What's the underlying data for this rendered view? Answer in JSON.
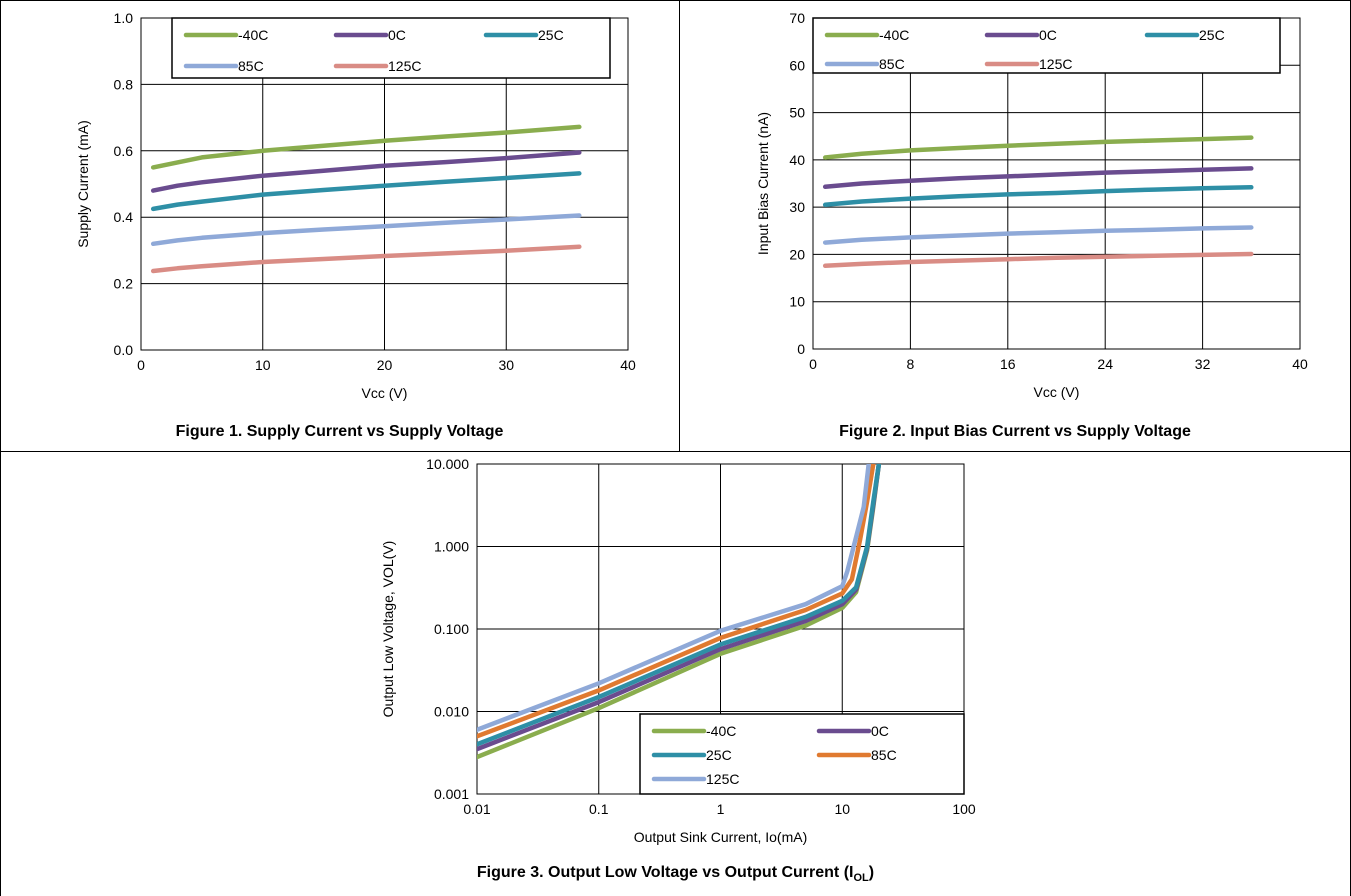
{
  "colors": {
    "minus40": "#8AAD4E",
    "zero": "#6A4C8F",
    "c25": "#2E8FA6",
    "c85": "#8FA9D8",
    "c125": "#D98C85",
    "f3_c85": "#E07A30"
  },
  "figures": [
    {
      "caption": "Figure 1. Supply Current vs Supply Voltage",
      "chart_data": {
        "type": "line",
        "xlabel": "Vcc (V)",
        "ylabel": "Supply Current (mA)",
        "xlim": [
          0,
          40
        ],
        "ylim": [
          0,
          1.0
        ],
        "xticks": [
          "0",
          "10",
          "20",
          "30",
          "40"
        ],
        "yticks": [
          "0.0",
          "0.2",
          "0.4",
          "0.6",
          "0.8",
          "1.0"
        ],
        "legend": "top",
        "grid": true,
        "series": [
          {
            "name": "-40C",
            "color": "#8AAD4E",
            "x": [
              1,
              3,
              5,
              10,
              15,
              20,
              25,
              30,
              36
            ],
            "y": [
              0.55,
              0.565,
              0.58,
              0.6,
              0.615,
              0.63,
              0.643,
              0.655,
              0.672
            ]
          },
          {
            "name": "0C",
            "color": "#6A4C8F",
            "x": [
              1,
              3,
              5,
              10,
              15,
              20,
              25,
              30,
              36
            ],
            "y": [
              0.48,
              0.495,
              0.505,
              0.525,
              0.54,
              0.555,
              0.566,
              0.578,
              0.595
            ]
          },
          {
            "name": "25C",
            "color": "#2E8FA6",
            "x": [
              1,
              3,
              5,
              10,
              15,
              20,
              25,
              30,
              36
            ],
            "y": [
              0.425,
              0.438,
              0.447,
              0.468,
              0.482,
              0.495,
              0.507,
              0.518,
              0.532
            ]
          },
          {
            "name": "85C",
            "color": "#8FA9D8",
            "x": [
              1,
              3,
              5,
              10,
              15,
              20,
              25,
              30,
              36
            ],
            "y": [
              0.32,
              0.33,
              0.338,
              0.352,
              0.363,
              0.373,
              0.383,
              0.393,
              0.405
            ]
          },
          {
            "name": "125C",
            "color": "#D98C85",
            "x": [
              1,
              3,
              5,
              10,
              15,
              20,
              25,
              30,
              36
            ],
            "y": [
              0.238,
              0.246,
              0.252,
              0.265,
              0.274,
              0.283,
              0.291,
              0.299,
              0.311
            ]
          }
        ]
      }
    },
    {
      "caption": "Figure 2. Input Bias Current vs Supply Voltage",
      "chart_data": {
        "type": "line",
        "xlabel": "Vcc (V)",
        "ylabel": "Input Bias Current (nA)",
        "xlim": [
          0,
          40
        ],
        "ylim": [
          0,
          70
        ],
        "xticks": [
          "0",
          "8",
          "16",
          "24",
          "32",
          "40"
        ],
        "yticks": [
          "0",
          "10",
          "20",
          "30",
          "40",
          "50",
          "60",
          "70"
        ],
        "legend": "top",
        "grid": true,
        "series": [
          {
            "name": "-40C",
            "color": "#8AAD4E",
            "x": [
              1,
              4,
              8,
              12,
              16,
              20,
              24,
              28,
              32,
              36
            ],
            "y": [
              40.5,
              41.3,
              42.0,
              42.5,
              43.0,
              43.4,
              43.8,
              44.1,
              44.4,
              44.7
            ]
          },
          {
            "name": "0C",
            "color": "#6A4C8F",
            "x": [
              1,
              4,
              8,
              12,
              16,
              20,
              24,
              28,
              32,
              36
            ],
            "y": [
              34.3,
              35.0,
              35.6,
              36.1,
              36.5,
              36.9,
              37.3,
              37.6,
              37.9,
              38.2
            ]
          },
          {
            "name": "25C",
            "color": "#2E8FA6",
            "x": [
              1,
              4,
              8,
              12,
              16,
              20,
              24,
              28,
              32,
              36
            ],
            "y": [
              30.5,
              31.2,
              31.8,
              32.3,
              32.7,
              33.0,
              33.4,
              33.7,
              34.0,
              34.2
            ]
          },
          {
            "name": "85C",
            "color": "#8FA9D8",
            "x": [
              1,
              4,
              8,
              12,
              16,
              20,
              24,
              28,
              32,
              36
            ],
            "y": [
              22.5,
              23.1,
              23.6,
              24.0,
              24.4,
              24.7,
              25.0,
              25.2,
              25.5,
              25.7
            ]
          },
          {
            "name": "125C",
            "color": "#D98C85",
            "x": [
              1,
              4,
              8,
              12,
              16,
              20,
              24,
              28,
              32,
              36
            ],
            "y": [
              17.6,
              18.0,
              18.4,
              18.7,
              19.0,
              19.3,
              19.5,
              19.7,
              19.9,
              20.1
            ]
          }
        ]
      }
    },
    {
      "caption": "Figure 3. Output Low Voltage vs Output Current (I",
      "caption_sub": "OL",
      "caption_end": ")",
      "chart_data": {
        "type": "line",
        "xlabel": "Output Sink Current, Io(mA)",
        "ylabel": "Output Low Voltage, VOL(V)",
        "xscale": "log",
        "yscale": "log",
        "xlim": [
          0.01,
          100
        ],
        "ylim": [
          0.001,
          10
        ],
        "xticks": [
          "0.01",
          "0.1",
          "1",
          "10",
          "100"
        ],
        "yticks": [
          "0.001",
          "0.010",
          "0.100",
          "1.000",
          "10.000"
        ],
        "legend": "bottom-right",
        "grid": true,
        "series": [
          {
            "name": "-40C",
            "color": "#8AAD4E",
            "x": [
              0.01,
              0.1,
              1,
              5,
              10,
              13,
              16,
              18,
              20
            ],
            "y": [
              0.0028,
              0.011,
              0.05,
              0.11,
              0.18,
              0.28,
              0.9,
              3.0,
              10
            ]
          },
          {
            "name": "0C",
            "color": "#6A4C8F",
            "x": [
              0.01,
              0.1,
              1,
              5,
              10,
              13,
              16,
              18,
              20
            ],
            "y": [
              0.0035,
              0.013,
              0.057,
              0.125,
              0.2,
              0.3,
              0.95,
              3.2,
              10
            ]
          },
          {
            "name": "25C",
            "color": "#2E8FA6",
            "x": [
              0.01,
              0.1,
              1,
              5,
              10,
              13,
              16,
              18,
              20
            ],
            "y": [
              0.004,
              0.015,
              0.065,
              0.14,
              0.22,
              0.32,
              1.0,
              3.5,
              10
            ]
          },
          {
            "name": "85C",
            "color": "#E07A30",
            "x": [
              0.01,
              0.1,
              1,
              5,
              10,
              12,
              14,
              16,
              18
            ],
            "y": [
              0.005,
              0.018,
              0.078,
              0.17,
              0.27,
              0.4,
              1.2,
              3.5,
              10
            ]
          },
          {
            "name": "125C",
            "color": "#8FA9D8",
            "x": [
              0.01,
              0.1,
              1,
              5,
              10,
              11,
              13,
              15,
              16.5
            ],
            "y": [
              0.006,
              0.022,
              0.095,
              0.2,
              0.33,
              0.5,
              1.3,
              3.0,
              10
            ]
          }
        ]
      }
    }
  ]
}
